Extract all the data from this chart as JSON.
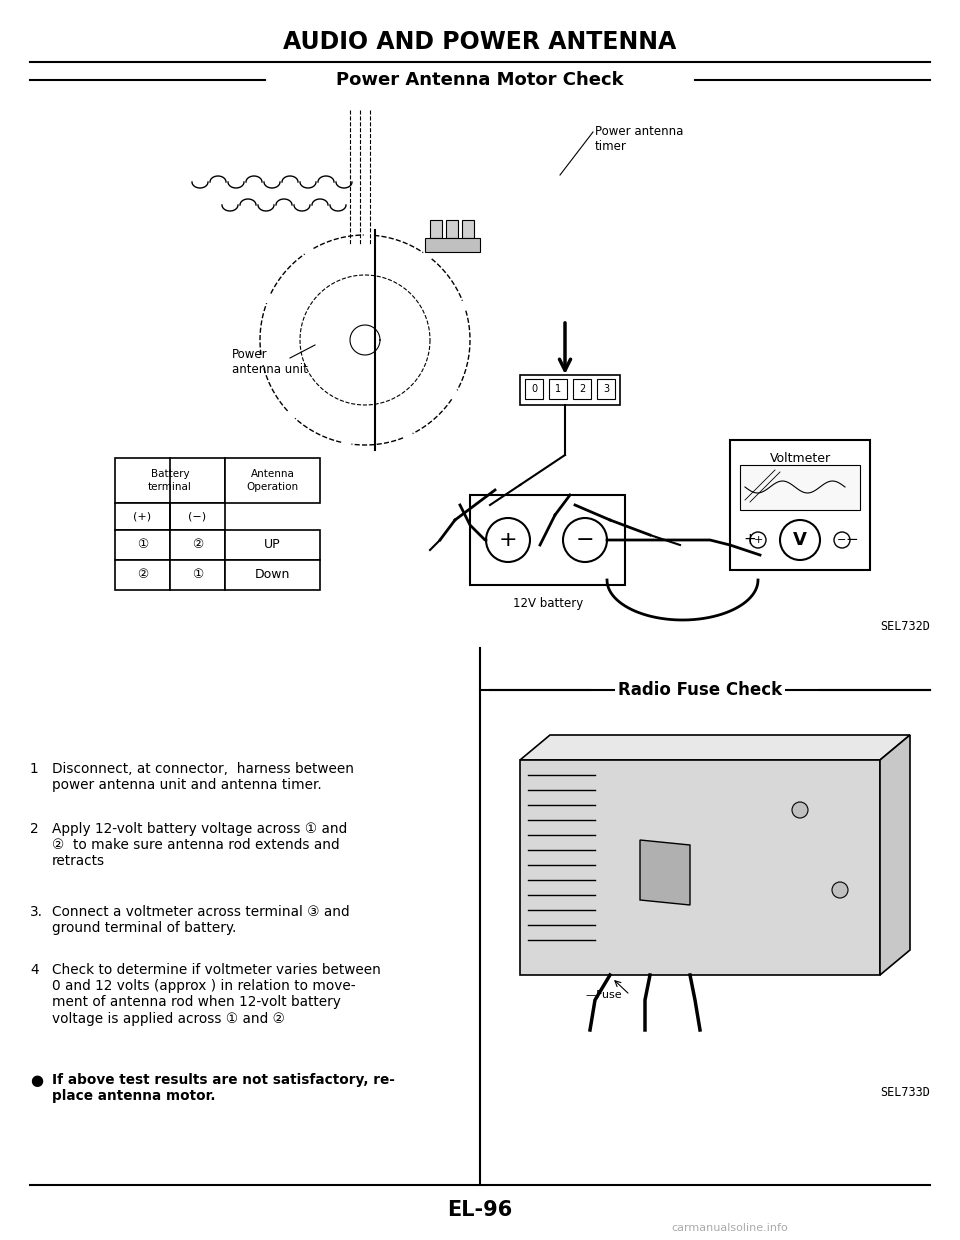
{
  "bg_color": "#ffffff",
  "page_title": "AUDIO AND POWER ANTENNA",
  "section1_title": "Power Antenna Motor Check",
  "section2_title": "Radio Fuse Check",
  "page_number": "EL-96",
  "watermark": "carmanualsoline.info",
  "diagram1_caption": "SEL732D",
  "diagram2_caption": "SEL733D",
  "table_col1_header": "Battery\nterminal",
  "table_col2_header": "Antenna\nOperation",
  "table_sub1": "(+)",
  "table_sub2": "(−)",
  "table_rows": [
    [
      "①",
      "②",
      "UP"
    ],
    [
      "②",
      "①",
      "Down"
    ]
  ],
  "label_power_antenna_unit": "Power\nantenna unit",
  "label_power_antenna_timer": "Power antenna\ntimer",
  "label_12v_battery": "12V battery",
  "label_voltmeter": "Voltmeter",
  "label_fuse": "—Fuse",
  "inst1_num": "1",
  "inst1_text": "Disconnect, at connector,  harness between\npower antenna unit and antenna timer.",
  "inst2_num": "2",
  "inst2_text": "Apply 12-volt battery voltage across ① and\n②  to make sure antenna rod extends and\nretracts",
  "inst3_num": "3.",
  "inst3_text": "Connect a voltmeter across terminal ③ and\nground terminal of battery.",
  "inst4_num": "4",
  "inst4_text": "Check to determine if voltmeter varies between\n0 and 12 volts (approx ) in relation to move-\nment of antenna rod when 12-volt battery\nvoltage is applied across ① and ②",
  "inst5_bullet": "●",
  "inst5_text": "If above test results are not satisfactory, re-\nplace antenna motor."
}
